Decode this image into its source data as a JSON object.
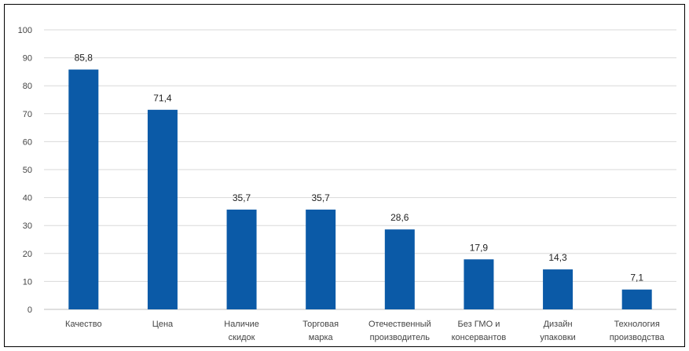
{
  "chart_data": {
    "type": "bar",
    "categories": [
      [
        "Качество"
      ],
      [
        "Цена"
      ],
      [
        "Наличие",
        "скидок"
      ],
      [
        "Торговая",
        "марка"
      ],
      [
        "Отечественный",
        "производитель"
      ],
      [
        "Без ГМО и",
        "консервантов"
      ],
      [
        "Дизайн",
        "упаковки"
      ],
      [
        "Технология",
        "производства"
      ]
    ],
    "values": [
      85.8,
      71.4,
      35.7,
      35.7,
      28.6,
      17.9,
      14.3,
      7.1
    ],
    "value_labels": [
      "85,8",
      "71,4",
      "35,7",
      "35,7",
      "28,6",
      "17,9",
      "14,3",
      "7,1"
    ],
    "ylim": [
      0,
      100
    ],
    "yticks": [
      "0",
      "10",
      "20",
      "30",
      "40",
      "50",
      "60",
      "70",
      "80",
      "90",
      "100"
    ],
    "grid": true,
    "legend": "none",
    "bar_color": "#0b5aa7"
  }
}
